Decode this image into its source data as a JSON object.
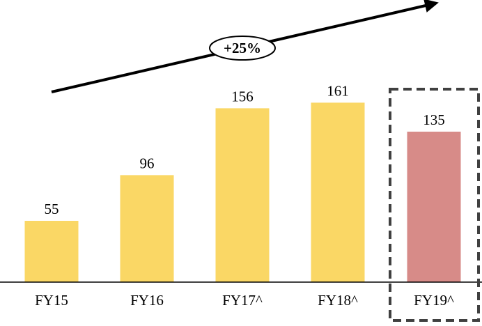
{
  "chart_data": {
    "type": "bar",
    "categories": [
      "FY15",
      "FY16",
      "FY17^",
      "FY18^",
      "FY19^"
    ],
    "values": [
      55,
      96,
      156,
      161,
      135
    ],
    "ylim": [
      0,
      175
    ],
    "grid": false,
    "annotation": {
      "text": "+25%"
    },
    "highlighted_category": "FY19^",
    "colors": {
      "bar": "#FAD765",
      "highlight_bar": "#D78B88",
      "arrow": "#000000",
      "highlight_box": "#404040"
    }
  }
}
